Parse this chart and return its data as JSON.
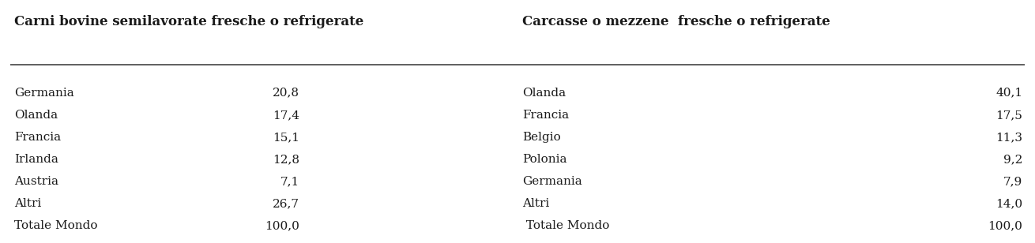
{
  "header_left": "Carni bovine semilavorate fresche o refrigerate",
  "header_right": "Carcasse o mezzene  fresche o refrigerate",
  "left_countries": [
    "Germania",
    "Olanda",
    "Francia",
    "Irlanda",
    "Austria",
    "Altri",
    "Totale Mondo"
  ],
  "left_values": [
    "20,8",
    "17,4",
    "15,1",
    "12,8",
    "7,1",
    "26,7",
    "100,0"
  ],
  "right_countries": [
    "Olanda",
    "Francia",
    "Belgio",
    "Polonia",
    "Germania",
    "Altri",
    " Totale Mondo"
  ],
  "right_values": [
    "40,1",
    "17,5",
    "11,3",
    "9,2",
    "7,9",
    "14,0",
    "100,0"
  ],
  "bg_color": "#ffffff",
  "text_color": "#1a1a1a",
  "header_fontsize": 12,
  "data_fontsize": 11,
  "fig_width": 13.1,
  "fig_height": 3.08,
  "dpi": 100
}
